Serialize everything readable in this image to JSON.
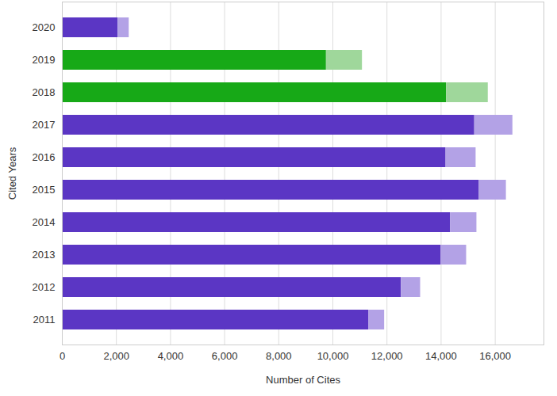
{
  "chart_data": {
    "type": "bar",
    "orientation": "horizontal",
    "stacked": true,
    "grid": true,
    "x_label": "Number of Cites",
    "y_label": "Cited Years",
    "categories": [
      "2020",
      "2019",
      "2018",
      "2017",
      "2016",
      "2015",
      "2014",
      "2013",
      "2012",
      "2011"
    ],
    "series": [
      {
        "colors": [
          "#5b36c4",
          "#17a917",
          "#17a917",
          "#5b36c4",
          "#5b36c4",
          "#5b36c4",
          "#5b36c4",
          "#5b36c4",
          "#5b36c4",
          "#5b36c4"
        ],
        "values": [
          2060,
          9760,
          14200,
          15240,
          14180,
          15410,
          14350,
          14000,
          12530,
          11320
        ]
      },
      {
        "colors": [
          "#b3a2e6",
          "#9fd79b",
          "#9fd79b",
          "#b3a2e6",
          "#b3a2e6",
          "#b3a2e6",
          "#b3a2e6",
          "#b3a2e6",
          "#b3a2e6",
          "#b3a2e6"
        ],
        "values": [
          410,
          1330,
          1540,
          1410,
          1110,
          1000,
          970,
          940,
          710,
          590
        ]
      }
    ],
    "xlim": [
      0,
      17800
    ],
    "xticks": [
      0,
      {
        "value": 2000,
        "label": "2,000"
      },
      {
        "value": 4000,
        "label": "4,000"
      },
      {
        "value": 6000,
        "label": "6,000"
      },
      {
        "value": 8000,
        "label": "8,000"
      },
      {
        "value": 10000,
        "label": "10,000"
      },
      {
        "value": 12000,
        "label": "12,000"
      },
      {
        "value": 14000,
        "label": "14,000"
      },
      {
        "value": 16000,
        "label": "16,000"
      }
    ]
  }
}
